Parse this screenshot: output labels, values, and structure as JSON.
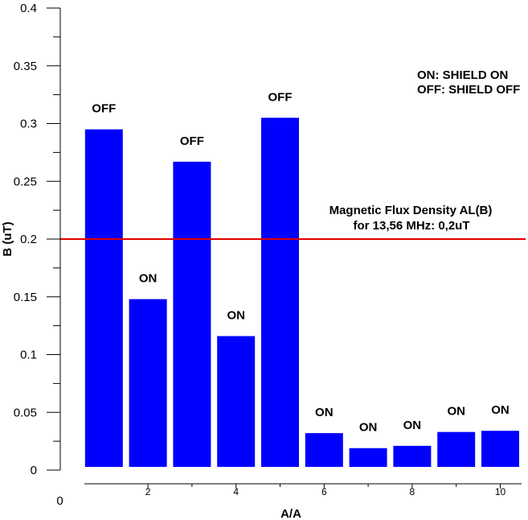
{
  "chart_data": {
    "type": "bar",
    "xlabel": "A/A",
    "ylabel": "B (uT)",
    "ylim": [
      0,
      0.4
    ],
    "yticks": [
      "0",
      "0.05",
      "0.1",
      "0.15",
      "0.2",
      "0.25",
      "0.3",
      "0.35",
      "0.4"
    ],
    "xlim": [
      0,
      10.5
    ],
    "xticks": [
      "0",
      "2",
      "4",
      "6",
      "8",
      "10"
    ],
    "grid": false,
    "bar_color": "#0000ff",
    "x": [
      1,
      2,
      3,
      4,
      5,
      6,
      7,
      8,
      9,
      10
    ],
    "values": [
      0.295,
      0.148,
      0.267,
      0.116,
      0.305,
      0.032,
      0.019,
      0.021,
      0.033,
      0.034
    ],
    "bar_labels": [
      "OFF",
      "ON",
      "OFF",
      "ON",
      "OFF",
      "ON",
      "ON",
      "ON",
      "ON",
      "ON"
    ],
    "reference_line": {
      "value": 0.2,
      "color": "#e00000",
      "label_line1": "Magnetic Flux Density AL(B)",
      "label_line2": "for 13,56 MHz: 0,2uT"
    },
    "legend_note": {
      "line1": "ON: SHIELD ON",
      "line2": "OFF: SHIELD OFF",
      "placement": "top-right"
    }
  }
}
